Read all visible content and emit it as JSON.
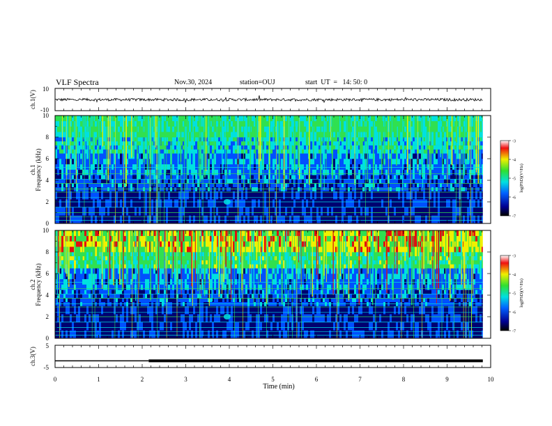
{
  "header": {
    "title": "VLF Spectra",
    "date": "Nov.30, 2024",
    "station": "station=OUJ",
    "start": "start  UT  =   14: 50: 0"
  },
  "chart_data": [
    {
      "type": "line",
      "panel": "ch1-waveform",
      "ylabel": "ch.1(V)",
      "ylim": [
        -10,
        10
      ],
      "yticks": [
        "10",
        "-10"
      ],
      "x": [
        0,
        10
      ],
      "note_level": -0.1,
      "series": [
        {
          "values_level_approx": -0.1
        }
      ]
    },
    {
      "type": "heatmap",
      "panel": "ch1-spectrogram",
      "ylabel": "ch.1",
      "ylabel2": "Frequency (kHz)",
      "ylim": [
        0,
        10
      ],
      "yticks": [
        "0",
        "2",
        "4",
        "6",
        "8",
        "10"
      ],
      "xlim": [
        0,
        10
      ],
      "colorbar": {
        "label": "log(PSD)(V²/Hz)",
        "range": [
          -7,
          -3
        ],
        "ticks": [
          "-3",
          "-4",
          "-5",
          "-6",
          "-7"
        ]
      }
    },
    {
      "type": "heatmap",
      "panel": "ch2-spectrogram",
      "ylabel": "ch.2",
      "ylabel2": "Frequency (kHz)",
      "ylim": [
        0,
        10
      ],
      "yticks": [
        "0",
        "2",
        "4",
        "6",
        "8",
        "10"
      ],
      "xlim": [
        0,
        10
      ],
      "colorbar": {
        "label": "log(PSD)(V²/Hz)",
        "range": [
          -7,
          -3
        ],
        "ticks": [
          "-3",
          "-4",
          "-5",
          "-6",
          "-7"
        ]
      }
    },
    {
      "type": "line",
      "panel": "ch3-signal",
      "ylabel": "ch.3(V)",
      "ylim": [
        -5,
        5
      ],
      "yticks": [
        "5",
        "-5"
      ],
      "xlim": [
        0,
        10
      ],
      "xticks": [
        "0",
        "1",
        "2",
        "3",
        "4",
        "5",
        "6",
        "7",
        "8",
        "9",
        "10"
      ],
      "xlabel": "Time (min)",
      "series": [
        {
          "x": [
            0,
            2.15,
            2.15,
            9.82
          ],
          "y": [
            -2,
            -2,
            -2,
            -2
          ]
        }
      ]
    }
  ],
  "colors": {
    "low": "#000070",
    "blue": "#0050ff",
    "cyan": "#00e0e0",
    "green": "#30e050",
    "yellow": "#f0f000",
    "red": "#e01010"
  }
}
